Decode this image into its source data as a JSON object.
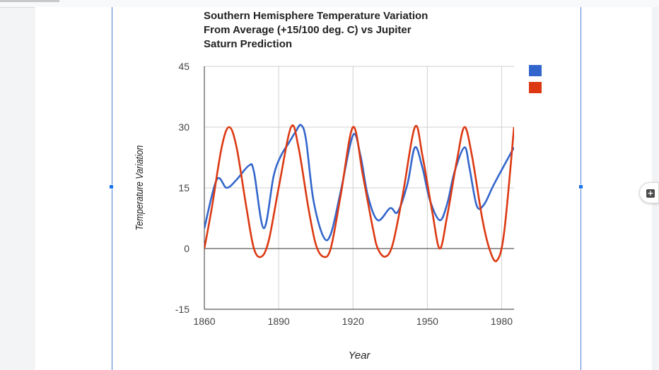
{
  "ui": {
    "add_glyph": "+",
    "colors": {
      "selection": "#1a73e8",
      "series_blue": "#3366cc",
      "series_red": "#dc3912"
    }
  },
  "chart_data": {
    "type": "line",
    "title_lines": [
      "Southern Hemisphere Temperature Variation",
      "From Average (+15/100 deg. C) vs Jupiter",
      "Saturn Prediction"
    ],
    "xlabel": "Year",
    "ylabel": "Temperature Variation",
    "xlim": [
      1860,
      1985
    ],
    "ylim": [
      -15,
      45
    ],
    "x_ticks": [
      1860,
      1890,
      1920,
      1950,
      1980
    ],
    "y_ticks": [
      45,
      30,
      15,
      0,
      -15
    ],
    "grid": true,
    "legend_position": "right",
    "series": [
      {
        "color": "#3366cc",
        "points": [
          [
            1860,
            5
          ],
          [
            1865,
            17
          ],
          [
            1869,
            15
          ],
          [
            1873,
            17
          ],
          [
            1878,
            20.5
          ],
          [
            1880,
            19
          ],
          [
            1884,
            5
          ],
          [
            1888,
            18
          ],
          [
            1891,
            23
          ],
          [
            1894,
            26
          ],
          [
            1897,
            29
          ],
          [
            1899,
            30.5
          ],
          [
            1901,
            27
          ],
          [
            1904,
            12
          ],
          [
            1908,
            3
          ],
          [
            1911,
            3.5
          ],
          [
            1915,
            14
          ],
          [
            1920,
            28
          ],
          [
            1923,
            23
          ],
          [
            1926,
            13
          ],
          [
            1930,
            7
          ],
          [
            1935,
            10
          ],
          [
            1938,
            9
          ],
          [
            1942,
            16
          ],
          [
            1945,
            25
          ],
          [
            1948,
            20
          ],
          [
            1951,
            12
          ],
          [
            1955,
            7
          ],
          [
            1958,
            11
          ],
          [
            1961,
            19
          ],
          [
            1965,
            25
          ],
          [
            1967,
            20
          ],
          [
            1970,
            10.5
          ],
          [
            1973,
            11
          ],
          [
            1977,
            16
          ],
          [
            1985,
            25
          ]
        ]
      },
      {
        "color": "#dc3912",
        "points": [
          [
            1860,
            0
          ],
          [
            1863,
            10
          ],
          [
            1867,
            25
          ],
          [
            1870,
            30
          ],
          [
            1873,
            25
          ],
          [
            1877,
            10
          ],
          [
            1880,
            0
          ],
          [
            1883,
            -2
          ],
          [
            1886,
            2
          ],
          [
            1890,
            15
          ],
          [
            1895,
            30
          ],
          [
            1898,
            25
          ],
          [
            1902,
            10
          ],
          [
            1905,
            1
          ],
          [
            1908,
            -2
          ],
          [
            1911,
            0
          ],
          [
            1915,
            13
          ],
          [
            1920,
            30
          ],
          [
            1924,
            18
          ],
          [
            1928,
            5
          ],
          [
            1930,
            0
          ],
          [
            1933,
            -2
          ],
          [
            1936,
            1
          ],
          [
            1940,
            13
          ],
          [
            1945,
            30
          ],
          [
            1948,
            23
          ],
          [
            1952,
            9
          ],
          [
            1955,
            0
          ],
          [
            1958,
            8
          ],
          [
            1962,
            22
          ],
          [
            1965,
            30
          ],
          [
            1968,
            23
          ],
          [
            1972,
            8
          ],
          [
            1975,
            0
          ],
          [
            1978,
            -3
          ],
          [
            1981,
            4
          ],
          [
            1985,
            30
          ]
        ]
      }
    ]
  }
}
